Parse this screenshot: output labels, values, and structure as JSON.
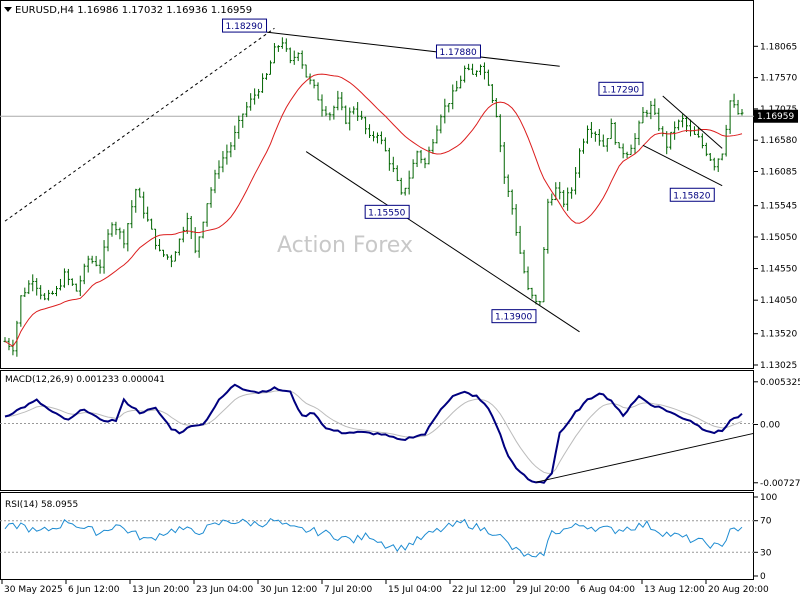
{
  "header": {
    "symbol_line": "EURUSD,H4  1.16986  1.17032  1.16936  1.16959"
  },
  "watermark": "Action Forex",
  "colors": {
    "candle": "#006400",
    "ma": "#dc1e1e",
    "macd": "#00007f",
    "signal": "#bcbcbc",
    "rsi": "#1e8cd2",
    "trend": "#000000",
    "grid_dotted": "#999999",
    "price_line": "#aaaaaa"
  },
  "chart_data": [
    {
      "type": "line",
      "name_label": "",
      "ylim": [
        1.13025,
        1.1856
      ],
      "yticks": [
        "1.18065",
        "1.17570",
        "1.17075",
        "1.16580",
        "1.16085",
        "1.15545",
        "1.15050",
        "1.14550",
        "1.14050",
        "1.13520",
        "1.13025"
      ],
      "current_price": "1.16959",
      "x_labels": [
        "30 May 2025",
        "6 Jun 12:00",
        "13 Jun 20:00",
        "23 Jun 04:00",
        "30 Jun 12:00",
        "7 Jul 20:00",
        "15 Jul 04:00",
        "22 Jul 12:00",
        "29 Jul 20:00",
        "6 Aug 04:00",
        "13 Aug 12:00",
        "20 Aug 20:00"
      ],
      "price_anchors": [
        [
          0,
          1.134
        ],
        [
          2,
          1.133
        ],
        [
          4,
          1.141
        ],
        [
          7,
          1.144
        ],
        [
          10,
          1.1405
        ],
        [
          13,
          1.142
        ],
        [
          15,
          1.1445
        ],
        [
          18,
          1.142
        ],
        [
          21,
          1.147
        ],
        [
          24,
          1.146
        ],
        [
          27,
          1.153
        ],
        [
          30,
          1.15
        ],
        [
          33,
          1.158
        ],
        [
          36,
          1.153
        ],
        [
          39,
          1.148
        ],
        [
          42,
          1.147
        ],
        [
          44,
          1.15
        ],
        [
          46,
          1.154
        ],
        [
          48,
          1.148
        ],
        [
          51,
          1.156
        ],
        [
          54,
          1.162
        ],
        [
          57,
          1.165
        ],
        [
          60,
          1.17
        ],
        [
          63,
          1.173
        ],
        [
          66,
          1.176
        ],
        [
          68,
          1.18
        ],
        [
          70,
          1.1815
        ],
        [
          72,
          1.178
        ],
        [
          74,
          1.18
        ],
        [
          76,
          1.176
        ],
        [
          78,
          1.174
        ],
        [
          80,
          1.171
        ],
        [
          82,
          1.17
        ],
        [
          84,
          1.172
        ],
        [
          86,
          1.169
        ],
        [
          88,
          1.171
        ],
        [
          90,
          1.169
        ],
        [
          92,
          1.166
        ],
        [
          94,
          1.167
        ],
        [
          96,
          1.164
        ],
        [
          98,
          1.161
        ],
        [
          100,
          1.157
        ],
        [
          102,
          1.16
        ],
        [
          104,
          1.164
        ],
        [
          106,
          1.162
        ],
        [
          108,
          1.166
        ],
        [
          110,
          1.17
        ],
        [
          112,
          1.172
        ],
        [
          114,
          1.174
        ],
        [
          116,
          1.177
        ],
        [
          118,
          1.176
        ],
        [
          120,
          1.178
        ],
        [
          122,
          1.175
        ],
        [
          124,
          1.17
        ],
        [
          126,
          1.16
        ],
        [
          128,
          1.155
        ],
        [
          130,
          1.148
        ],
        [
          132,
          1.142
        ],
        [
          134,
          1.14
        ],
        [
          135,
          1.1405
        ],
        [
          137,
          1.156
        ],
        [
          139,
          1.158
        ],
        [
          141,
          1.156
        ],
        [
          143,
          1.158
        ],
        [
          145,
          1.164
        ],
        [
          147,
          1.168
        ],
        [
          149,
          1.167
        ],
        [
          151,
          1.165
        ],
        [
          153,
          1.168
        ],
        [
          155,
          1.164
        ],
        [
          157,
          1.164
        ],
        [
          159,
          1.166
        ],
        [
          161,
          1.17
        ],
        [
          163,
          1.171
        ],
        [
          165,
          1.168
        ],
        [
          167,
          1.165
        ],
        [
          169,
          1.168
        ],
        [
          171,
          1.169
        ],
        [
          173,
          1.167
        ],
        [
          175,
          1.166
        ],
        [
          177,
          1.164
        ],
        [
          179,
          1.162
        ],
        [
          181,
          1.164
        ],
        [
          183,
          1.172
        ],
        [
          185,
          1.17
        ],
        [
          186,
          1.1696
        ]
      ],
      "annotations": [
        {
          "label": "1.18290",
          "bar": 66,
          "value": 1.1829
        },
        {
          "label": "1.17880",
          "bar": 120,
          "value": 1.1788
        },
        {
          "label": "1.17290",
          "bar": 161,
          "value": 1.1729
        },
        {
          "label": "1.15550",
          "bar": 102,
          "value": 1.1555
        },
        {
          "label": "1.13900",
          "bar": 134,
          "value": 1.139
        },
        {
          "label": "1.15820",
          "bar": 179,
          "value": 1.1582
        }
      ],
      "trendlines": [
        {
          "from": [
            0,
            1.153
          ],
          "to": [
            68,
            1.1835
          ],
          "style": "dashed"
        },
        {
          "from": [
            66,
            1.1829
          ],
          "to": [
            140,
            1.1775
          ],
          "style": "solid"
        },
        {
          "from": [
            76,
            1.164
          ],
          "to": [
            145,
            1.1355
          ],
          "style": "solid"
        },
        {
          "from": [
            166,
            1.1728
          ],
          "to": [
            181,
            1.1645
          ],
          "style": "solid"
        },
        {
          "from": [
            161,
            1.165
          ],
          "to": [
            181,
            1.1586
          ],
          "style": "solid"
        }
      ]
    },
    {
      "type": "line",
      "title": "MACD(12,26,9) 0.001233 0.000041",
      "ylim": [
        -0.0078,
        0.0058
      ],
      "yticks": [
        "0.005325",
        "0.00",
        "-0.007273"
      ],
      "macd_anchors": [
        [
          0,
          0.001
        ],
        [
          4,
          0.002
        ],
        [
          8,
          0.003
        ],
        [
          12,
          0.0015
        ],
        [
          16,
          0.0005
        ],
        [
          20,
          0.002
        ],
        [
          24,
          0.0005
        ],
        [
          28,
          0.0005
        ],
        [
          30,
          0.003
        ],
        [
          34,
          0.0015
        ],
        [
          38,
          0.002
        ],
        [
          42,
          -0.0005
        ],
        [
          44,
          -0.001
        ],
        [
          48,
          0.0
        ],
        [
          50,
          0.0
        ],
        [
          54,
          0.003
        ],
        [
          58,
          0.005
        ],
        [
          60,
          0.0045
        ],
        [
          64,
          0.004
        ],
        [
          68,
          0.0045
        ],
        [
          72,
          0.004
        ],
        [
          75,
          0.001
        ],
        [
          78,
          0.0015
        ],
        [
          81,
          -0.0005
        ],
        [
          85,
          -0.001
        ],
        [
          90,
          -0.001
        ],
        [
          95,
          -0.0012
        ],
        [
          100,
          -0.002
        ],
        [
          103,
          -0.0015
        ],
        [
          106,
          -0.0012
        ],
        [
          110,
          0.002
        ],
        [
          113,
          0.0035
        ],
        [
          116,
          0.004
        ],
        [
          119,
          0.0035
        ],
        [
          122,
          0.002
        ],
        [
          124,
          0.0
        ],
        [
          127,
          -0.004
        ],
        [
          130,
          -0.006
        ],
        [
          133,
          -0.0072
        ],
        [
          136,
          -0.0072
        ],
        [
          138,
          -0.006
        ],
        [
          140,
          -0.001
        ],
        [
          142,
          0.0
        ],
        [
          144,
          0.0015
        ],
        [
          147,
          0.003
        ],
        [
          150,
          0.004
        ],
        [
          153,
          0.003
        ],
        [
          156,
          0.001
        ],
        [
          158,
          0.0025
        ],
        [
          160,
          0.0035
        ],
        [
          163,
          0.0025
        ],
        [
          166,
          0.002
        ],
        [
          170,
          0.001
        ],
        [
          173,
          0.0005
        ],
        [
          176,
          -0.0005
        ],
        [
          179,
          -0.001
        ],
        [
          181,
          -0.0008
        ],
        [
          183,
          0.0005
        ],
        [
          186,
          0.0012
        ]
      ]
    },
    {
      "type": "line",
      "title": "RSI(14) 58.0955",
      "ylim": [
        0,
        100
      ],
      "yticks": [
        "100",
        "70",
        "30",
        "0"
      ],
      "levels": [
        70,
        30
      ],
      "rsi_anchors": [
        [
          0,
          60
        ],
        [
          4,
          65
        ],
        [
          8,
          55
        ],
        [
          12,
          60
        ],
        [
          16,
          70
        ],
        [
          20,
          60
        ],
        [
          24,
          55
        ],
        [
          28,
          65
        ],
        [
          32,
          55
        ],
        [
          36,
          45
        ],
        [
          40,
          55
        ],
        [
          44,
          60
        ],
        [
          48,
          55
        ],
        [
          52,
          62
        ],
        [
          56,
          70
        ],
        [
          60,
          68
        ],
        [
          64,
          66
        ],
        [
          68,
          70
        ],
        [
          72,
          60
        ],
        [
          76,
          58
        ],
        [
          80,
          55
        ],
        [
          84,
          50
        ],
        [
          88,
          45
        ],
        [
          92,
          52
        ],
        [
          96,
          40
        ],
        [
          100,
          35
        ],
        [
          104,
          45
        ],
        [
          108,
          55
        ],
        [
          112,
          62
        ],
        [
          116,
          68
        ],
        [
          120,
          60
        ],
        [
          124,
          55
        ],
        [
          128,
          35
        ],
        [
          132,
          25
        ],
        [
          134,
          20
        ],
        [
          136,
          30
        ],
        [
          138,
          55
        ],
        [
          142,
          60
        ],
        [
          146,
          65
        ],
        [
          150,
          60
        ],
        [
          154,
          58
        ],
        [
          158,
          62
        ],
        [
          162,
          65
        ],
        [
          166,
          55
        ],
        [
          170,
          50
        ],
        [
          174,
          45
        ],
        [
          178,
          40
        ],
        [
          181,
          35
        ],
        [
          183,
          62
        ],
        [
          186,
          58
        ]
      ]
    }
  ]
}
